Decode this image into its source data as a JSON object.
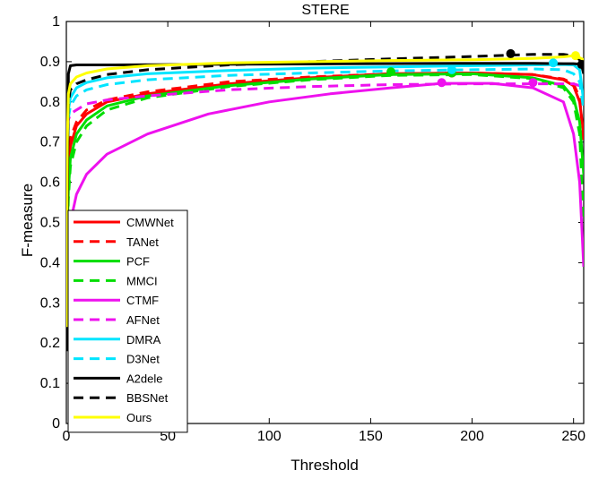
{
  "chart_data": {
    "type": "line",
    "title": "STERE",
    "xlabel": "Threshold",
    "ylabel": "F-measure",
    "xlim": [
      0,
      255
    ],
    "ylim": [
      0,
      1
    ],
    "xticks": [
      0,
      50,
      100,
      150,
      200,
      250
    ],
    "yticks": [
      0,
      0.1,
      0.2,
      0.3,
      0.4,
      0.5,
      0.6,
      0.7,
      0.8,
      0.9,
      1
    ],
    "xtick_labels": [
      "0",
      "50",
      "100",
      "150",
      "200",
      "250"
    ],
    "ytick_labels": [
      "0",
      "0.1",
      "0.2",
      "0.3",
      "0.4",
      "0.5",
      "0.6",
      "0.7",
      "0.8",
      "0.9",
      "1"
    ],
    "grid": false,
    "legend_position": "bottom-left",
    "series": [
      {
        "name": "CMWNet",
        "color": "#ff0000",
        "dash": "solid",
        "x": [
          0,
          1,
          2,
          5,
          10,
          20,
          40,
          80,
          120,
          160,
          200,
          230,
          245,
          250,
          253,
          255
        ],
        "y": [
          0.42,
          0.62,
          0.69,
          0.74,
          0.77,
          0.8,
          0.82,
          0.845,
          0.86,
          0.87,
          0.872,
          0.868,
          0.855,
          0.84,
          0.8,
          0.72
        ],
        "marker": [
          190,
          0.872
        ]
      },
      {
        "name": "TANet",
        "color": "#ff0000",
        "dash": "dashed",
        "x": [
          0,
          1,
          2,
          5,
          10,
          20,
          40,
          80,
          120,
          160,
          200,
          230,
          245,
          250,
          253,
          255
        ],
        "y": [
          0.45,
          0.64,
          0.71,
          0.75,
          0.78,
          0.805,
          0.825,
          0.85,
          0.862,
          0.87,
          0.872,
          0.868,
          0.857,
          0.845,
          0.81,
          0.7
        ],
        "marker": [
          190,
          0.872
        ]
      },
      {
        "name": "PCF",
        "color": "#00dd00",
        "dash": "solid",
        "x": [
          0,
          1,
          2,
          5,
          10,
          20,
          40,
          80,
          120,
          160,
          200,
          230,
          245,
          250,
          253,
          255
        ],
        "y": [
          0.4,
          0.58,
          0.66,
          0.72,
          0.755,
          0.79,
          0.815,
          0.84,
          0.857,
          0.868,
          0.87,
          0.86,
          0.84,
          0.81,
          0.75,
          0.62
        ],
        "marker": [
          190,
          0.872
        ]
      },
      {
        "name": "MMCI",
        "color": "#00dd00",
        "dash": "dashed",
        "x": [
          0,
          1,
          2,
          5,
          10,
          20,
          40,
          80,
          120,
          160,
          200,
          230,
          245,
          250,
          253,
          255
        ],
        "y": [
          0.38,
          0.56,
          0.64,
          0.7,
          0.74,
          0.78,
          0.81,
          0.838,
          0.855,
          0.866,
          0.868,
          0.858,
          0.835,
          0.8,
          0.72,
          0.5
        ],
        "marker": [
          160,
          0.875
        ]
      },
      {
        "name": "CTMF",
        "color": "#ee11ee",
        "dash": "solid",
        "x": [
          0,
          1,
          2,
          5,
          10,
          20,
          40,
          70,
          100,
          130,
          160,
          185,
          210,
          230,
          245,
          250,
          253,
          255
        ],
        "y": [
          0.2,
          0.42,
          0.5,
          0.57,
          0.62,
          0.67,
          0.72,
          0.77,
          0.8,
          0.82,
          0.835,
          0.846,
          0.846,
          0.835,
          0.8,
          0.72,
          0.6,
          0.39
        ],
        "marker": [
          185,
          0.848
        ]
      },
      {
        "name": "AFNet",
        "color": "#ee11ee",
        "dash": "dashed",
        "x": [
          0,
          2,
          5,
          10,
          20,
          40,
          80,
          120,
          160,
          200,
          225,
          240,
          250,
          253,
          255
        ],
        "y": [
          0.74,
          0.77,
          0.78,
          0.795,
          0.805,
          0.815,
          0.83,
          0.838,
          0.843,
          0.845,
          0.845,
          0.845,
          0.845,
          0.84,
          0.83
        ],
        "marker": [
          230,
          0.848
        ]
      },
      {
        "name": "DMRA",
        "color": "#00e5ff",
        "dash": "solid",
        "x": [
          0,
          1,
          2,
          5,
          10,
          20,
          40,
          80,
          120,
          160,
          200,
          230,
          245,
          250,
          253,
          255
        ],
        "y": [
          0.55,
          0.78,
          0.81,
          0.835,
          0.848,
          0.86,
          0.87,
          0.878,
          0.884,
          0.887,
          0.89,
          0.892,
          0.893,
          0.892,
          0.88,
          0.8
        ],
        "marker": [
          240,
          0.897
        ]
      },
      {
        "name": "D3Net",
        "color": "#00e5ff",
        "dash": "dashed",
        "x": [
          0,
          1,
          2,
          5,
          10,
          20,
          40,
          80,
          120,
          160,
          200,
          230,
          245,
          250,
          253,
          255
        ],
        "y": [
          0.6,
          0.76,
          0.79,
          0.815,
          0.83,
          0.843,
          0.855,
          0.866,
          0.872,
          0.877,
          0.88,
          0.882,
          0.88,
          0.87,
          0.85,
          0.78
        ],
        "marker": [
          190,
          0.88
        ]
      },
      {
        "name": "A2dele",
        "color": "#000000",
        "dash": "solid",
        "x": [
          0,
          0.5,
          1,
          2,
          5,
          20,
          60,
          100,
          150,
          200,
          230,
          245,
          250,
          253,
          254,
          255
        ],
        "y": [
          0.18,
          0.5,
          0.87,
          0.89,
          0.892,
          0.892,
          0.893,
          0.894,
          0.895,
          0.896,
          0.896,
          0.895,
          0.895,
          0.894,
          0.89,
          0.87
        ],
        "marker": [
          254,
          0.893
        ]
      },
      {
        "name": "BBSNet",
        "color": "#000000",
        "dash": "dashed",
        "x": [
          0,
          1,
          2,
          5,
          10,
          20,
          40,
          80,
          120,
          160,
          200,
          230,
          245,
          250,
          253,
          255
        ],
        "y": [
          0.45,
          0.8,
          0.83,
          0.845,
          0.855,
          0.868,
          0.88,
          0.892,
          0.9,
          0.907,
          0.913,
          0.918,
          0.918,
          0.915,
          0.905,
          0.9
        ],
        "marker": [
          219,
          0.92
        ]
      },
      {
        "name": "Ours",
        "color": "#ffff00",
        "dash": "solid",
        "x": [
          0,
          0.5,
          1,
          2,
          5,
          10,
          20,
          40,
          80,
          120,
          160,
          200,
          230,
          245,
          250,
          253,
          255
        ],
        "y": [
          0.24,
          0.7,
          0.82,
          0.845,
          0.862,
          0.872,
          0.882,
          0.89,
          0.897,
          0.9,
          0.903,
          0.905,
          0.908,
          0.912,
          0.915,
          0.91,
          0.905
        ],
        "marker": [
          251,
          0.915
        ]
      }
    ]
  }
}
